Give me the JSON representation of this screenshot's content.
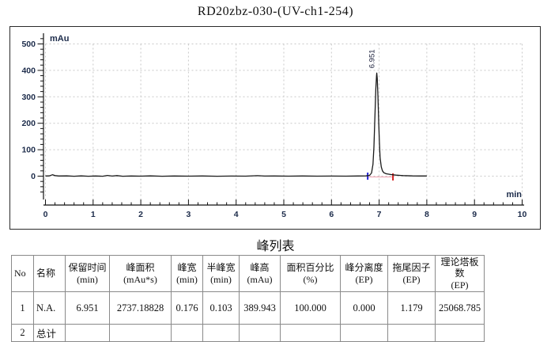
{
  "title": "RD20zbz-030-(UV-ch1-254)",
  "chart_data": {
    "type": "line",
    "title": "RD20zbz-030-(UV-ch1-254)",
    "xlabel": "min",
    "ylabel": "mAu",
    "xlim": [
      0,
      10
    ],
    "ylim": [
      0,
      500
    ],
    "x_ticks": [
      0,
      1,
      2,
      3,
      4,
      5,
      6,
      7,
      8,
      9,
      10
    ],
    "y_ticks": [
      0,
      100,
      200,
      300,
      400,
      500
    ],
    "grid": true,
    "legend": "none",
    "trace_color": "#1a1a1a",
    "grid_color": "#c8c8c8",
    "peak_baseline_color": "#f2aebc",
    "peak_start_marker_color": "#2323d6",
    "peak_end_marker_color": "#d62323",
    "peak": {
      "label": "6.951",
      "retention_time": 6.951,
      "height": 389.943,
      "start": 6.76,
      "end": 7.29
    },
    "trace": [
      [
        0,
        0.5
      ],
      [
        0.08,
        1
      ],
      [
        0.15,
        5.5
      ],
      [
        0.2,
        2
      ],
      [
        0.28,
        0.5
      ],
      [
        0.45,
        1
      ],
      [
        0.6,
        -0.3
      ],
      [
        0.75,
        0.8
      ],
      [
        0.9,
        -0.2
      ],
      [
        1.05,
        0.6
      ],
      [
        1.2,
        -0.3
      ],
      [
        1.3,
        2.8
      ],
      [
        1.4,
        0.3
      ],
      [
        1.5,
        2.2
      ],
      [
        1.62,
        -0.2
      ],
      [
        1.8,
        0.6
      ],
      [
        2,
        0
      ],
      [
        2.2,
        0.8
      ],
      [
        2.45,
        -0.4
      ],
      [
        2.7,
        0.5
      ],
      [
        3,
        0
      ],
      [
        3.3,
        0.6
      ],
      [
        3.6,
        -0.3
      ],
      [
        3.9,
        0.4
      ],
      [
        4.2,
        0
      ],
      [
        4.45,
        1.8
      ],
      [
        4.6,
        0.2
      ],
      [
        4.8,
        0.6
      ],
      [
        5.1,
        0
      ],
      [
        5.4,
        0.5
      ],
      [
        5.7,
        0
      ],
      [
        6,
        0.4
      ],
      [
        6.3,
        0
      ],
      [
        6.55,
        0.5
      ],
      [
        6.72,
        0.8
      ],
      [
        6.8,
        3
      ],
      [
        6.84,
        12
      ],
      [
        6.87,
        45
      ],
      [
        6.89,
        110
      ],
      [
        6.91,
        220
      ],
      [
        6.93,
        330
      ],
      [
        6.945,
        380
      ],
      [
        6.951,
        389.9
      ],
      [
        6.96,
        370
      ],
      [
        6.975,
        300
      ],
      [
        6.99,
        210
      ],
      [
        7.005,
        130
      ],
      [
        7.02,
        70
      ],
      [
        7.045,
        35
      ],
      [
        7.07,
        20
      ],
      [
        7.1,
        13
      ],
      [
        7.15,
        9
      ],
      [
        7.25,
        6
      ],
      [
        7.35,
        4
      ],
      [
        7.5,
        2
      ],
      [
        7.7,
        1
      ],
      [
        7.85,
        0.6
      ],
      [
        8,
        0.5
      ]
    ]
  },
  "table": {
    "title": "峰列表",
    "headers": [
      {
        "label": "No",
        "unit": ""
      },
      {
        "label": "名称",
        "unit": ""
      },
      {
        "label": "保留时间",
        "unit": "(min)"
      },
      {
        "label": "峰面积",
        "unit": "(mAu*s)"
      },
      {
        "label": "峰宽",
        "unit": "(min)"
      },
      {
        "label": "半峰宽",
        "unit": "(min)"
      },
      {
        "label": "峰高",
        "unit": "(mAu)"
      },
      {
        "label": "面积百分比",
        "unit": "(%)"
      },
      {
        "label": "峰分离度",
        "unit": "(EP)"
      },
      {
        "label": "拖尾因子",
        "unit": "(EP)"
      },
      {
        "label": "理论塔板数",
        "unit": "(EP)"
      }
    ],
    "rows": [
      [
        "1",
        "N.A.",
        "6.951",
        "2737.18828",
        "0.176",
        "0.103",
        "389.943",
        "100.000",
        "0.000",
        "1.179",
        "25068.785"
      ],
      [
        "2",
        "总计",
        "",
        "",
        "",
        "",
        "",
        "",
        "",
        "",
        ""
      ]
    ]
  }
}
